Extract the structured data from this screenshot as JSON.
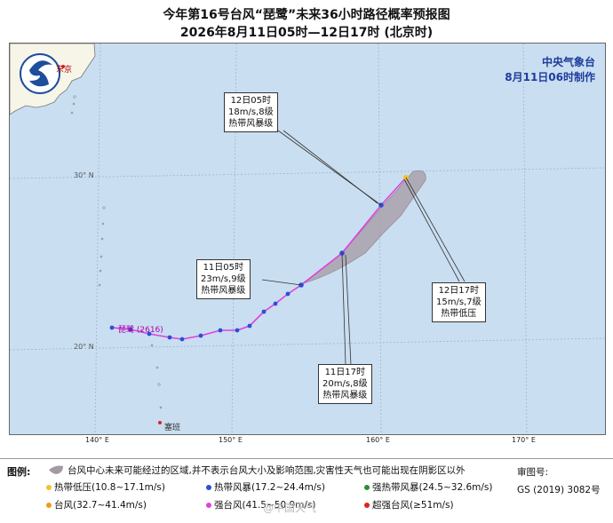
{
  "header": {
    "title": "今年第16号台风“琵鹭”未来36小时路径概率预报图",
    "subtitle": "2026年8月11日05时—12日17时 (北京时)"
  },
  "agency": {
    "name": "中央气象台",
    "issued": "8月11日06时制作"
  },
  "map_labels": {
    "tokyo": "东京",
    "guam": "塞班",
    "typhoon_label": "琵鹭 (2616)"
  },
  "axes": {
    "x_ticks": [
      "140° E",
      "150° E",
      "160° E",
      "170° E"
    ],
    "y_ticks": [
      "30° N",
      "20° N"
    ]
  },
  "callouts": [
    {
      "time": "12日05时",
      "wind": "18m/s,8级",
      "level": "热带风暴级"
    },
    {
      "time": "11日05时",
      "wind": "23m/s,9级",
      "level": "热带风暴级"
    },
    {
      "time": "12日17时",
      "wind": "15m/s,7级",
      "level": "热带低压"
    },
    {
      "time": "11日17时",
      "wind": "20m/s,8级",
      "level": "热带风暴级"
    }
  ],
  "legend": {
    "title": "图例:",
    "cone_text": "台风中心未来可能经过的区域,并不表示台风大小及影响范围,灾害性天气也可能出现在阴影区以外",
    "items": [
      {
        "label": "热带低压(10.8~17.1m/s)",
        "color": "#f2c12e"
      },
      {
        "label": "热带风暴(17.2~24.4m/s)",
        "color": "#2c4fd6"
      },
      {
        "label": "强热带风暴(24.5~32.6m/s)",
        "color": "#2e8b3a"
      },
      {
        "label": "台风(32.7~41.4m/s)",
        "color": "#f29a1a"
      },
      {
        "label": "强台风(41.5~50.9m/s)",
        "color": "#e040e0"
      },
      {
        "label": "超强台风(≥51m/s)",
        "color": "#e02020"
      }
    ]
  },
  "approval": {
    "label": "审图号:",
    "number": "GS (2019) 3082号"
  },
  "watermark": "@中国天气"
}
